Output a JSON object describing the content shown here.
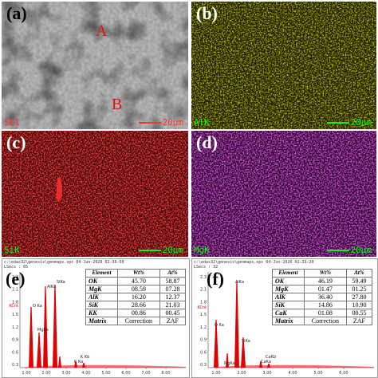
{
  "panels": {
    "a": {
      "label": "(a)",
      "channel": "SE1",
      "scale": "20μm",
      "markers": [
        "A",
        "B"
      ]
    },
    "b": {
      "label": "(b)",
      "channel": "AlK",
      "scale": "20μm"
    },
    "c": {
      "label": "(c)",
      "channel": "SiK",
      "scale": "20μm"
    },
    "d": {
      "label": "(d)",
      "channel": "MgK",
      "scale": "20μm"
    }
  },
  "spectra": {
    "e": {
      "label": "(e)",
      "file": "c:\\edax32\\genesis\\genmaps.spc 04-Jun-2020 02:36:50",
      "lsec": "LSecs : 65",
      "table_header": [
        "Element",
        "Wt%",
        "At%"
      ],
      "rows": [
        [
          "OK",
          "45.70",
          "58.87"
        ],
        [
          "MgK",
          "08.59",
          "07.28"
        ],
        [
          "AlK",
          "16.20",
          "12.37"
        ],
        [
          "SiK",
          "28.66",
          "21.03"
        ],
        [
          "KK",
          "00.86",
          "00.45"
        ],
        [
          "Matrix",
          "Correction",
          "ZAF"
        ]
      ],
      "peak_labels": [
        "O Ka",
        "AlKa",
        "SiKa",
        "MgKa",
        "K Kb",
        "K Ka"
      ],
      "y_ticks": [
        "2.3",
        "2.1",
        "1.8",
        "1.5",
        "1.2",
        "0.9",
        "0.6",
        "0.3"
      ],
      "y_unit": "KCnt",
      "x_ticks": [
        "1.00",
        "2.00",
        "3.00",
        "4.00",
        "5.00",
        "6.00",
        "7.00",
        "8.00"
      ],
      "peak_color": "#e00000"
    },
    "f": {
      "label": "(f)",
      "file": "c:\\edax32\\genesis\\genmaps.spc 04-Jun-2020 02:33:20",
      "lsec": "LSecs : 32",
      "table_header": [
        "Element",
        "Wt%",
        "At%"
      ],
      "rows": [
        [
          "OK",
          "46.19",
          "59.49"
        ],
        [
          "MgK",
          "01.47",
          "01.25"
        ],
        [
          "AlK",
          "36.40",
          "27.80"
        ],
        [
          "SiK",
          "14.86",
          "10.90"
        ],
        [
          "CaK",
          "01.08",
          "00.55"
        ],
        [
          "Matrix",
          "Correction",
          "ZAF"
        ]
      ],
      "peak_labels": [
        "AlKa",
        "O Ka",
        "SiKa",
        "MgKa",
        "CaKb",
        "CaKa"
      ],
      "y_ticks": [
        "2.3",
        "2.1",
        "1.8",
        "1.5",
        "1.2",
        "0.9",
        "0.6",
        "0.3"
      ],
      "y_unit": "KCnt",
      "x_ticks": [
        "1.00",
        "2.00",
        "3.00",
        "4.00",
        "5.00",
        "6.00"
      ],
      "peak_color": "#e00000"
    }
  },
  "colors": {
    "yellow_map": "#d7d300",
    "red_map": "#e01010",
    "magenta_map": "#c020c0",
    "scale_bar": "#00ff00"
  }
}
